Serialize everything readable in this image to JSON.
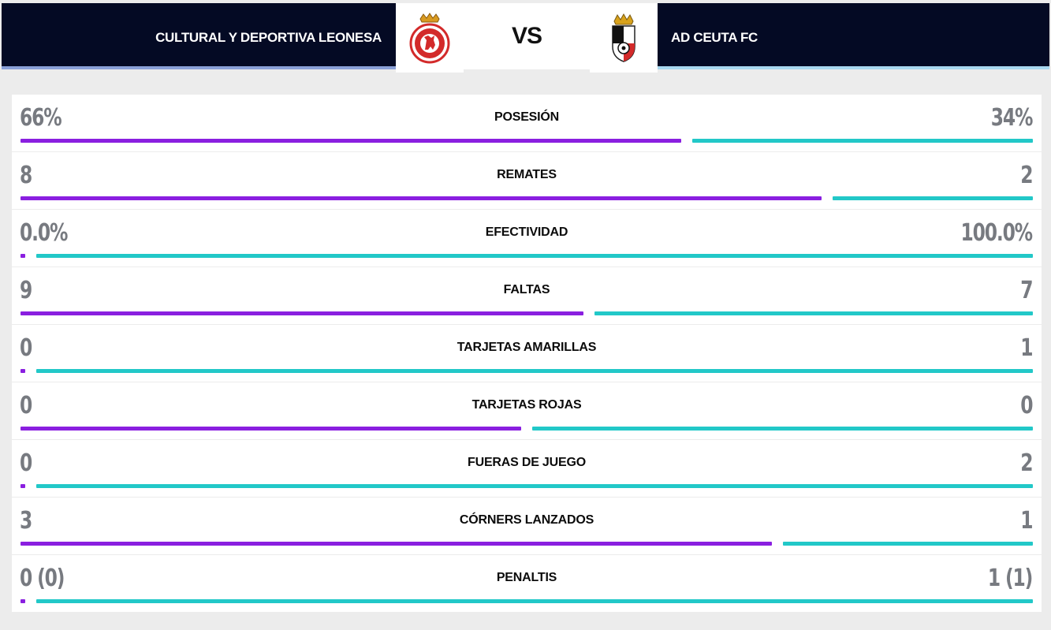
{
  "match": {
    "home_team": "CULTURAL Y DEPORTIVA LEONESA",
    "away_team": "AD CEUTA FC",
    "vs_label": "VS",
    "home_crest_icon": "cultural-leonesa-crest",
    "away_crest_icon": "ad-ceuta-crest"
  },
  "colors": {
    "header_bg": "#040a24",
    "home_bar": "#8a1fe0",
    "away_bar": "#22c8c8"
  },
  "stats": [
    {
      "label": "POSESIÓN",
      "home": "66%",
      "away": "34%",
      "home_share": 0.66
    },
    {
      "label": "REMATES",
      "home": "8",
      "away": "2",
      "home_share": 0.8
    },
    {
      "label": "EFECTIVIDAD",
      "home": "0.0%",
      "away": "100.0%",
      "home_share": 0.0
    },
    {
      "label": "FALTAS",
      "home": "9",
      "away": "7",
      "home_share": 0.5625
    },
    {
      "label": "TARJETAS AMARILLAS",
      "home": "0",
      "away": "1",
      "home_share": 0.0
    },
    {
      "label": "TARJETAS ROJAS",
      "home": "0",
      "away": "0",
      "home_share": 0.5
    },
    {
      "label": "FUERAS DE JUEGO",
      "home": "0",
      "away": "2",
      "home_share": 0.0
    },
    {
      "label": "CÓRNERS LANZADOS",
      "home": "3",
      "away": "1",
      "home_share": 0.75
    },
    {
      "label": "PENALTIS",
      "home": "0 (0)",
      "away": "1 (1)",
      "home_share": 0.0
    }
  ]
}
